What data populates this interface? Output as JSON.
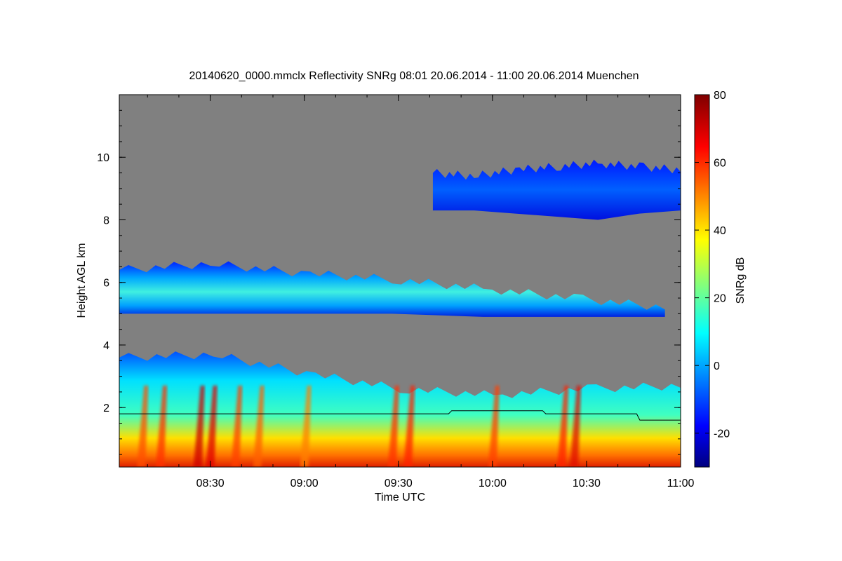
{
  "chart_data": {
    "type": "heatmap",
    "title": "20140620_0000.mmclx Reflectivity SNRg   08:01 20.06.2014 - 11:00 20.06.2014 Muenchen",
    "xlabel": "Time UTC",
    "ylabel": "Height AGL km",
    "colorbar_label": "SNRg dB",
    "xlim": [
      "08:01",
      "11:00"
    ],
    "ylim": [
      0.1,
      12
    ],
    "x_ticks": [
      "08:30",
      "09:00",
      "09:30",
      "10:00",
      "10:30",
      "11:00"
    ],
    "y_ticks": [
      "2",
      "4",
      "6",
      "8",
      "10"
    ],
    "colorbar_range": [
      -30,
      80
    ],
    "colorbar_ticks": [
      "-20",
      "0",
      "20",
      "40",
      "60",
      "80"
    ],
    "colorscale": "jet",
    "background_color": "#808080",
    "layers": [
      {
        "name": "",
        "description": "upper cirrus layer",
        "x_start": "09:41",
        "x_end": "11:00",
        "bottom_km": [
          8.3,
          8.3,
          8.2,
          8.1,
          8.0,
          8.2,
          8.3
        ],
        "top_km": [
          9.5,
          9.4,
          9.6,
          9.7,
          9.8,
          9.7,
          9.6
        ],
        "snr_db": [
          -20,
          -12
        ]
      },
      {
        "name": "",
        "description": "mid-level layer",
        "x_start": "08:01",
        "x_end": "10:55",
        "bottom_km": [
          5.0,
          5.0,
          5.0,
          5.0,
          4.9,
          4.9,
          4.9
        ],
        "top_km": [
          6.4,
          6.6,
          6.3,
          6.1,
          5.8,
          5.5,
          5.2
        ],
        "snr_db": [
          -15,
          15
        ]
      },
      {
        "name": "",
        "description": "boundary layer",
        "x_start": "08:01",
        "x_end": "11:00",
        "top_km": [
          3.6,
          3.7,
          3.1,
          2.6,
          2.4,
          2.6,
          2.7
        ],
        "snr_db": [
          0,
          70
        ]
      }
    ],
    "bl_height_line": {
      "x": [
        "08:01",
        "09:46",
        "09:47",
        "10:16",
        "10:17",
        "10:46",
        "10:47",
        "11:00"
      ],
      "y": [
        1.8,
        1.8,
        1.9,
        1.9,
        1.8,
        1.8,
        1.6,
        1.6
      ]
    }
  }
}
